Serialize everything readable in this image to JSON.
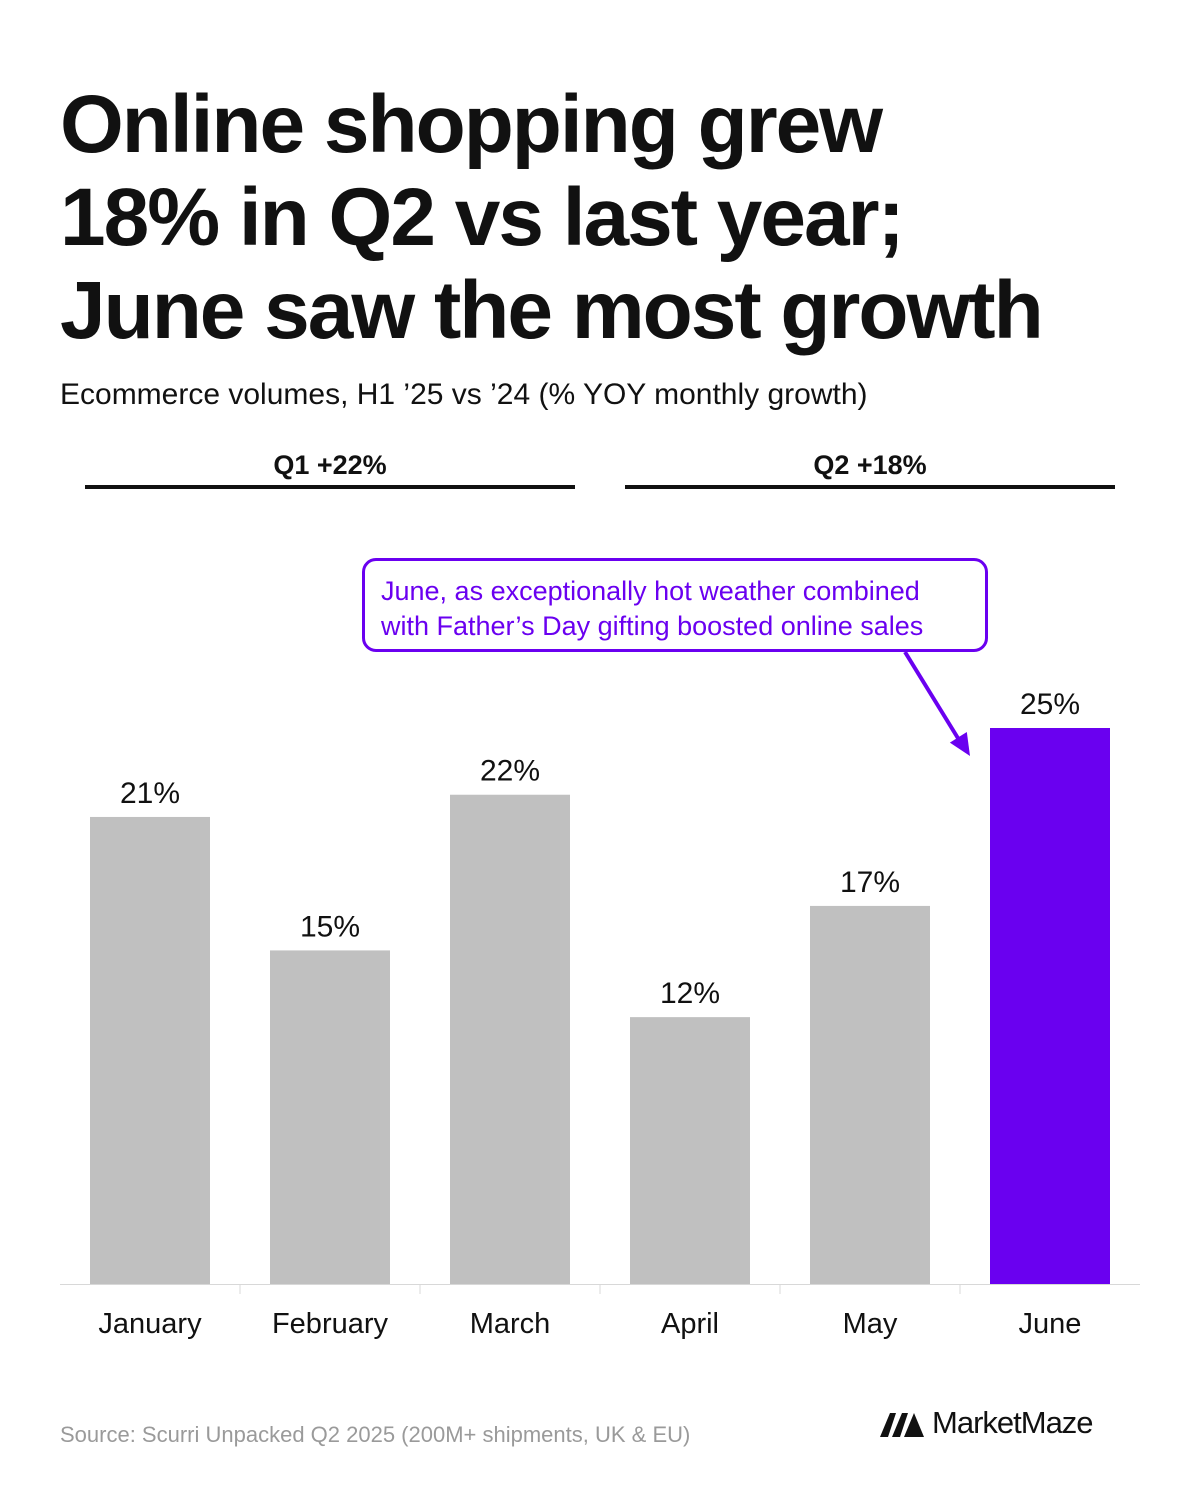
{
  "title_lines": [
    "Online shopping grew",
    "18% in Q2 vs last year;",
    "June saw the most growth"
  ],
  "subtitle": "Ecommerce volumes, H1 ’25 vs ’24 (% YOY monthly growth)",
  "quarters": [
    {
      "label": "Q1  +22%"
    },
    {
      "label": "Q2  +18%"
    }
  ],
  "callout_lines": [
    "June, as exceptionally hot weather combined",
    "with Father’s Day gifting boosted online sales"
  ],
  "source": "Source: Scurri Unpacked Q2 2025 (200M+ shipments, UK & EU)",
  "brand": "MarketMaze",
  "colors": {
    "bar": "#c0c0c0",
    "highlight": "#6a00f0",
    "accent": "#6a00f0"
  },
  "chart_data": {
    "type": "bar",
    "categories": [
      "January",
      "February",
      "March",
      "April",
      "May",
      "June"
    ],
    "values": [
      21,
      15,
      22,
      12,
      17,
      25
    ],
    "value_labels": [
      "21%",
      "15%",
      "22%",
      "12%",
      "17%",
      "25%"
    ],
    "highlight": "June",
    "ylim": [
      0,
      25
    ],
    "grid": false,
    "xlabel": "",
    "ylabel": ""
  }
}
